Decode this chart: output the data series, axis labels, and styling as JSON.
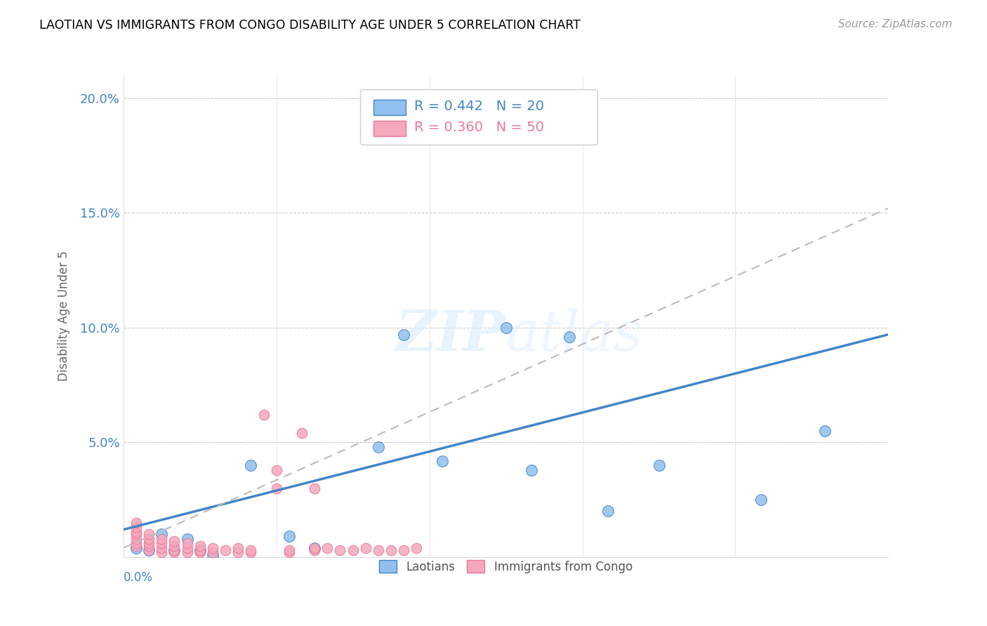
{
  "title": "LAOTIAN VS IMMIGRANTS FROM CONGO DISABILITY AGE UNDER 5 CORRELATION CHART",
  "source": "Source: ZipAtlas.com",
  "ylabel": "Disability Age Under 5",
  "yticks": [
    0.0,
    0.05,
    0.1,
    0.15,
    0.2
  ],
  "ytick_labels": [
    "",
    "5.0%",
    "10.0%",
    "15.0%",
    "20.0%"
  ],
  "xlim": [
    0.0,
    0.06
  ],
  "ylim": [
    0.0,
    0.21
  ],
  "color_laotian": "#91C0EE",
  "color_congo": "#F5A8BB",
  "color_line_laotian": "#4285C8",
  "color_line_congo": "#E87898",
  "color_grid": "#cccccc",
  "laotian_x": [
    0.001,
    0.002,
    0.003,
    0.004,
    0.005,
    0.006,
    0.007,
    0.01,
    0.013,
    0.015,
    0.02,
    0.022,
    0.025,
    0.03,
    0.032,
    0.035,
    0.038,
    0.042,
    0.05,
    0.055
  ],
  "laotian_y": [
    0.004,
    0.003,
    0.01,
    0.003,
    0.008,
    0.003,
    0.001,
    0.04,
    0.009,
    0.004,
    0.048,
    0.097,
    0.042,
    0.1,
    0.038,
    0.096,
    0.02,
    0.04,
    0.025,
    0.055
  ],
  "congo_x": [
    0.001,
    0.001,
    0.001,
    0.001,
    0.001,
    0.001,
    0.001,
    0.002,
    0.002,
    0.002,
    0.002,
    0.002,
    0.003,
    0.003,
    0.003,
    0.003,
    0.004,
    0.004,
    0.004,
    0.004,
    0.005,
    0.005,
    0.005,
    0.006,
    0.006,
    0.006,
    0.007,
    0.007,
    0.008,
    0.009,
    0.009,
    0.01,
    0.01,
    0.011,
    0.012,
    0.012,
    0.013,
    0.013,
    0.014,
    0.015,
    0.015,
    0.015,
    0.016,
    0.017,
    0.018,
    0.019,
    0.02,
    0.021,
    0.022,
    0.023
  ],
  "congo_y": [
    0.005,
    0.006,
    0.008,
    0.01,
    0.011,
    0.013,
    0.015,
    0.003,
    0.005,
    0.006,
    0.008,
    0.01,
    0.002,
    0.004,
    0.006,
    0.008,
    0.002,
    0.003,
    0.005,
    0.007,
    0.002,
    0.004,
    0.006,
    0.002,
    0.003,
    0.005,
    0.002,
    0.004,
    0.003,
    0.002,
    0.004,
    0.002,
    0.003,
    0.062,
    0.03,
    0.038,
    0.002,
    0.003,
    0.054,
    0.003,
    0.004,
    0.03,
    0.004,
    0.003,
    0.003,
    0.004,
    0.003,
    0.003,
    0.003,
    0.004
  ],
  "laotian_line": {
    "x0": 0.0,
    "x1": 0.06,
    "y0": 0.012,
    "y1": 0.097
  },
  "congo_line": {
    "x0": 0.0,
    "x1": 0.06,
    "y0": 0.004,
    "y1": 0.152
  }
}
